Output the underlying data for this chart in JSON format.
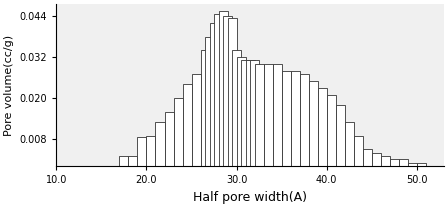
{
  "title": "",
  "xlabel": "Half pore width(A)",
  "ylabel": "Pore volume(cc/g)",
  "xlim": [
    10.0,
    53.0
  ],
  "ylim": [
    0.0,
    0.0475
  ],
  "xticks": [
    10.0,
    20.0,
    30.0,
    40.0,
    50.0
  ],
  "yticks": [
    0.008,
    0.02,
    0.032,
    0.044
  ],
  "ytick_labels": [
    "0.008",
    "0.020",
    "0.032",
    "0.044"
  ],
  "xtick_labels": [
    "10.0",
    "20.0",
    "30.0",
    "40.0",
    "50.0"
  ],
  "bar_centers": [
    17.5,
    18.5,
    19.5,
    20.5,
    21.5,
    22.5,
    23.5,
    24.5,
    25.5,
    26.5,
    27.0,
    27.5,
    28.0,
    28.5,
    29.0,
    29.5,
    30.0,
    30.5,
    31.0,
    31.5,
    32.0,
    32.5,
    33.5,
    34.5,
    35.5,
    36.5,
    37.5,
    38.5,
    39.5,
    40.5,
    41.5,
    42.5,
    43.5,
    44.5,
    45.5,
    46.5,
    47.5,
    48.5,
    49.5,
    50.5
  ],
  "bar_heights": [
    0.003,
    0.003,
    0.0085,
    0.009,
    0.013,
    0.016,
    0.02,
    0.024,
    0.027,
    0.034,
    0.038,
    0.042,
    0.0445,
    0.0455,
    0.044,
    0.0435,
    0.034,
    0.032,
    0.031,
    0.031,
    0.031,
    0.03,
    0.03,
    0.03,
    0.028,
    0.028,
    0.027,
    0.025,
    0.023,
    0.021,
    0.018,
    0.013,
    0.009,
    0.005,
    0.004,
    0.003,
    0.002,
    0.002,
    0.001,
    0.001
  ],
  "bar_width": 1.0,
  "bar_color": "#ffffff",
  "bar_edge_color": "#333333",
  "bar_linewidth": 0.6,
  "bg_color": "#e8e8e8",
  "face_color": "#ffffff",
  "xlabel_fontsize": 9,
  "ylabel_fontsize": 8,
  "tick_fontsize": 7
}
